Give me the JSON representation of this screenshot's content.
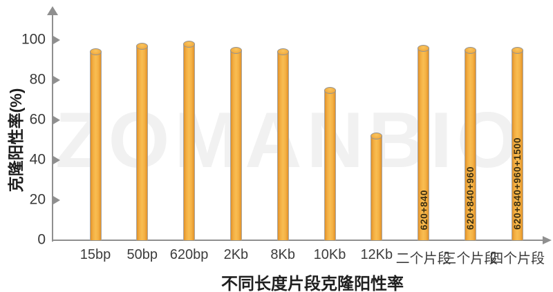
{
  "watermark": "ZOMANBIO",
  "chart_data": {
    "type": "bar",
    "title": "",
    "xlabel": "不同长度片段克隆阳性率",
    "ylabel": "克隆阳性率(%)",
    "ylim": [
      0,
      100
    ],
    "yticks": [
      0,
      20,
      40,
      60,
      80,
      100
    ],
    "grid": false,
    "legend": "none",
    "bar_color": "#F2A93C",
    "axis_color": "#8F8F8F",
    "bar_style": "cylinder",
    "categories": [
      "15bp",
      "50bp",
      "620bp",
      "2Kb",
      "8Kb",
      "10Kb",
      "12Kb",
      "二个片段",
      "三个片段",
      "四个片段"
    ],
    "values": [
      94,
      97,
      98,
      95,
      94,
      75,
      52,
      96,
      95,
      95
    ],
    "bar_labels": [
      "",
      "",
      "",
      "",
      "",
      "",
      "",
      "620+840",
      "620+840+960",
      "620+840+960+1500"
    ]
  }
}
